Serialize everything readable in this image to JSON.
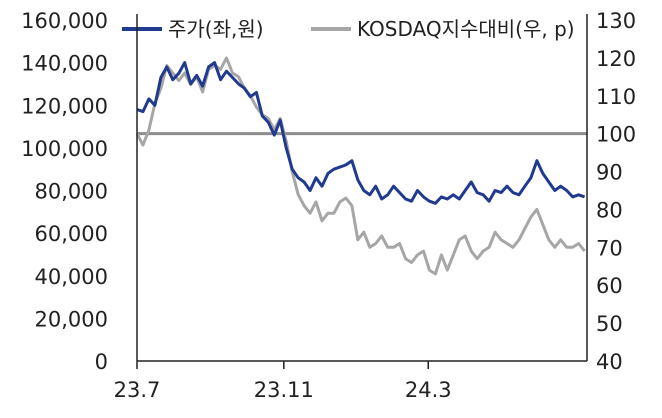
{
  "chart_data": {
    "type": "line",
    "title": "",
    "xlabel": "",
    "ylabel": "",
    "x_tick_labels": [
      "23.7",
      "23.11",
      "24.3"
    ],
    "x_ticks": [
      "2023-07-01",
      "2023-11-01",
      "2024-03-01"
    ],
    "x_range": [
      "2023-07-01",
      "2024-07-12"
    ],
    "y_left": {
      "range": [
        0,
        160000
      ],
      "ticks": [
        0,
        20000,
        40000,
        60000,
        80000,
        100000,
        120000,
        140000,
        160000
      ],
      "tick_labels": [
        "0",
        "20,000",
        "40,000",
        "60,000",
        "80,000",
        "100,000",
        "120,000",
        "140,000",
        "160,000"
      ]
    },
    "y_right": {
      "range": [
        40,
        130
      ],
      "ticks": [
        40,
        50,
        60,
        70,
        80,
        90,
        100,
        110,
        120,
        130
      ],
      "tick_labels": [
        "40",
        "50",
        "60",
        "70",
        "80",
        "90",
        "100",
        "110",
        "120",
        "130"
      ]
    },
    "reference_line": {
      "axis": "right",
      "value": 100,
      "color": "#8c8c8c"
    },
    "legend": {
      "placement": "top",
      "entries": [
        "주가(좌,원)",
        "KOSDAQ지수대비(우, p)"
      ]
    },
    "grid": false,
    "series": [
      {
        "name": "주가(좌,원)",
        "axis": "left",
        "color": "#1f3a8f",
        "x": [
          "2023-07-01",
          "2023-07-06",
          "2023-07-11",
          "2023-07-16",
          "2023-07-21",
          "2023-07-26",
          "2023-07-31",
          "2023-08-05",
          "2023-08-10",
          "2023-08-15",
          "2023-08-20",
          "2023-08-25",
          "2023-08-30",
          "2023-09-04",
          "2023-09-09",
          "2023-09-14",
          "2023-09-19",
          "2023-09-24",
          "2023-09-29",
          "2023-10-04",
          "2023-10-09",
          "2023-10-14",
          "2023-10-19",
          "2023-10-24",
          "2023-10-29",
          "2023-11-03",
          "2023-11-08",
          "2023-11-13",
          "2023-11-18",
          "2023-11-23",
          "2023-11-28",
          "2023-12-03",
          "2023-12-08",
          "2023-12-13",
          "2023-12-18",
          "2023-12-23",
          "2023-12-28",
          "2024-01-02",
          "2024-01-07",
          "2024-01-12",
          "2024-01-17",
          "2024-01-22",
          "2024-01-27",
          "2024-02-01",
          "2024-02-06",
          "2024-02-11",
          "2024-02-16",
          "2024-02-21",
          "2024-02-26",
          "2024-03-02",
          "2024-03-07",
          "2024-03-12",
          "2024-03-17",
          "2024-03-22",
          "2024-03-27",
          "2024-04-01",
          "2024-04-06",
          "2024-04-11",
          "2024-04-16",
          "2024-04-21",
          "2024-04-26",
          "2024-05-01",
          "2024-05-06",
          "2024-05-11",
          "2024-05-16",
          "2024-05-21",
          "2024-05-26",
          "2024-05-31",
          "2024-06-05",
          "2024-06-10",
          "2024-06-15",
          "2024-06-20",
          "2024-06-25",
          "2024-06-30",
          "2024-07-05",
          "2024-07-10"
        ],
        "values": [
          118000,
          117000,
          123000,
          120000,
          133000,
          138000,
          132000,
          135000,
          140000,
          130000,
          134000,
          129000,
          138000,
          140000,
          132000,
          136000,
          133000,
          130000,
          128000,
          124000,
          126000,
          115000,
          112000,
          106000,
          113000,
          100000,
          90000,
          86000,
          84000,
          80000,
          86000,
          82000,
          88000,
          90000,
          91000,
          92000,
          94000,
          85000,
          80000,
          78000,
          82000,
          76000,
          78000,
          82000,
          79000,
          76000,
          75000,
          80000,
          77000,
          75000,
          74000,
          77000,
          76000,
          78000,
          76000,
          80000,
          84000,
          79000,
          78000,
          75000,
          80000,
          79000,
          82000,
          79000,
          78000,
          82000,
          86000,
          94000,
          88000,
          84000,
          80000,
          82000,
          80000,
          77000,
          78000,
          77000
        ]
      },
      {
        "name": "KOSDAQ지수대비(우, p)",
        "axis": "right",
        "color": "#a6a6a6",
        "x": [
          "2023-07-01",
          "2023-07-06",
          "2023-07-11",
          "2023-07-16",
          "2023-07-21",
          "2023-07-26",
          "2023-07-31",
          "2023-08-05",
          "2023-08-10",
          "2023-08-15",
          "2023-08-20",
          "2023-08-25",
          "2023-08-30",
          "2023-09-04",
          "2023-09-09",
          "2023-09-14",
          "2023-09-19",
          "2023-09-24",
          "2023-09-29",
          "2023-10-04",
          "2023-10-09",
          "2023-10-14",
          "2023-10-19",
          "2023-10-24",
          "2023-10-29",
          "2023-11-03",
          "2023-11-08",
          "2023-11-13",
          "2023-11-18",
          "2023-11-23",
          "2023-11-28",
          "2023-12-03",
          "2023-12-08",
          "2023-12-13",
          "2023-12-18",
          "2023-12-23",
          "2023-12-28",
          "2024-01-02",
          "2024-01-07",
          "2024-01-12",
          "2024-01-17",
          "2024-01-22",
          "2024-01-27",
          "2024-02-01",
          "2024-02-06",
          "2024-02-11",
          "2024-02-16",
          "2024-02-21",
          "2024-02-26",
          "2024-03-02",
          "2024-03-07",
          "2024-03-12",
          "2024-03-17",
          "2024-03-22",
          "2024-03-27",
          "2024-04-01",
          "2024-04-06",
          "2024-04-11",
          "2024-04-16",
          "2024-04-21",
          "2024-04-26",
          "2024-05-01",
          "2024-05-06",
          "2024-05-11",
          "2024-05-16",
          "2024-05-21",
          "2024-05-26",
          "2024-05-31",
          "2024-06-05",
          "2024-06-10",
          "2024-06-15",
          "2024-06-20",
          "2024-06-25",
          "2024-06-30",
          "2024-07-05",
          "2024-07-10"
        ],
        "values": [
          100,
          97,
          101,
          108,
          112,
          118,
          116,
          114,
          116,
          113,
          115,
          111,
          117,
          118,
          117,
          120,
          116,
          115,
          112,
          110,
          107,
          105,
          104,
          101,
          104,
          98,
          90,
          84,
          81,
          79,
          82,
          77,
          79,
          79,
          82,
          83,
          81,
          72,
          74,
          70,
          71,
          73,
          70,
          70,
          71,
          67,
          66,
          68,
          69,
          64,
          63,
          68,
          64,
          68,
          72,
          73,
          69,
          67,
          69,
          70,
          74,
          72,
          71,
          70,
          72,
          75,
          78,
          80,
          76,
          72,
          70,
          72,
          70,
          70,
          71,
          69
        ]
      }
    ]
  }
}
